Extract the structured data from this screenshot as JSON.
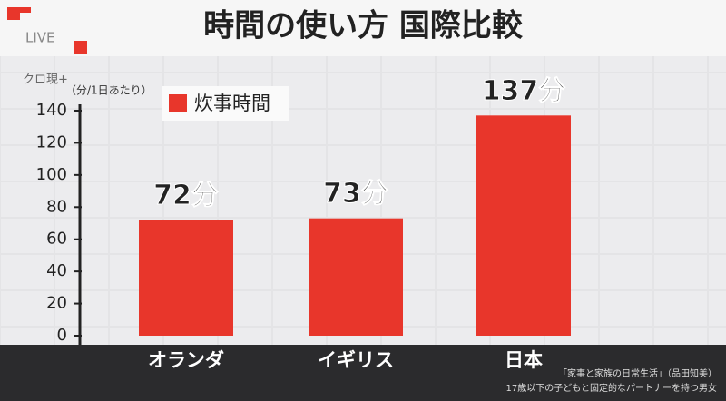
{
  "live_badge": "LIVE",
  "program_logo": "クロ現+",
  "chart_data": {
    "type": "bar",
    "title": "時間の使い方 国際比較",
    "unit_label": "（分/1日あたり）",
    "categories": [
      "オランダ",
      "イギリス",
      "日本"
    ],
    "series": [
      {
        "name": "炊事時間",
        "color": "#e8362b",
        "values": [
          72,
          73,
          137
        ],
        "value_labels": [
          "72分",
          "73分",
          "137分"
        ]
      }
    ],
    "ylim": [
      0,
      140
    ],
    "yticks": [
      0,
      20,
      40,
      60,
      80,
      100,
      120,
      140
    ],
    "source": [
      "「家事と家族の日常生活」（品田知美）",
      "17歳以下の子どもと固定的なパートナーを持つ男女"
    ]
  }
}
